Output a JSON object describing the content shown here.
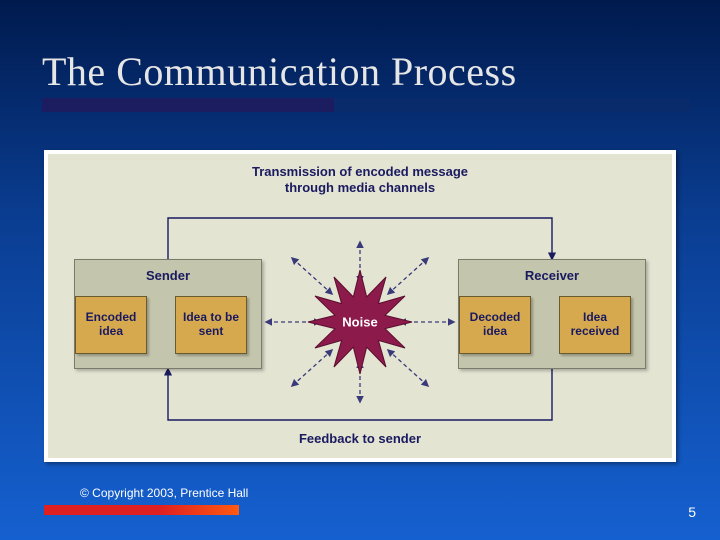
{
  "slide": {
    "title": "The Communication Process",
    "copyright": "© Copyright 2003, Prentice Hall",
    "page_number": "5",
    "background_gradient": [
      "#001a4d",
      "#0a3d91",
      "#1560d0"
    ],
    "title_fontfamily": "Times New Roman",
    "title_fontsize": 40,
    "title_color": "#e6e6e6",
    "underline_back_color": "#0a2b6b",
    "underline_front_color": "#1c1c60",
    "footer_bar_gradient": [
      "#e02020",
      "#ff5a12"
    ]
  },
  "diagram": {
    "type": "flowchart",
    "background_color": "#e3e4d2",
    "outer_background": "#ffffff",
    "label_color": "#1a1a60",
    "label_fontsize": 13,
    "transmission_label_line1": "Transmission of encoded message",
    "transmission_label_line2": "through media channels",
    "feedback_label": "Feedback to sender",
    "panel_background": "#c3c5ac",
    "panel_border": "#7a7b6a",
    "subbox_background": "#d7a94f",
    "subbox_border": "#6a5a2f",
    "sender": {
      "title": "Sender",
      "box1": "Idea to be sent",
      "box2": "Encoded idea"
    },
    "receiver": {
      "title": "Receiver",
      "box1": "Idea received",
      "box2": "Decoded idea"
    },
    "noise": {
      "label": "Noise",
      "fill_color": "#8c1a4b",
      "stroke_color": "#5a0f30",
      "points": 12,
      "outer_radius": 52,
      "inner_radius": 26
    },
    "solid_line_color": "#1a1a60",
    "dashed_line_color": "#3a3a7a",
    "arrow_stroke_width": 1.4
  }
}
